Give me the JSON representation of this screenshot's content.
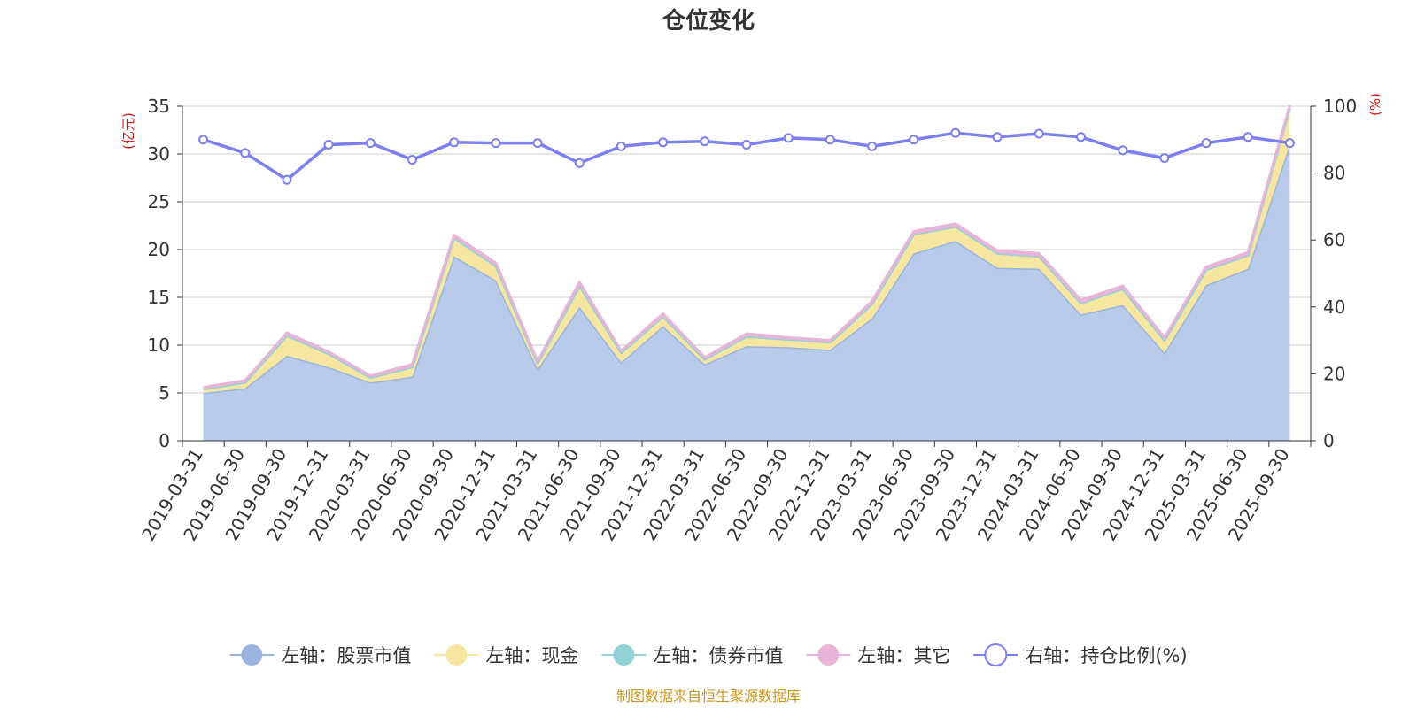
{
  "chart_data": {
    "type": "area",
    "title": "仓位变化",
    "left_axis_unit": "(亿元)",
    "right_axis_unit": "(%)",
    "categories": [
      "2019-03-31",
      "2019-06-30",
      "2019-09-30",
      "2019-12-31",
      "2020-03-31",
      "2020-06-30",
      "2020-09-30",
      "2020-12-31",
      "2021-03-31",
      "2021-06-30",
      "2021-09-30",
      "2021-12-31",
      "2022-03-31",
      "2022-06-30",
      "2022-09-30",
      "2022-12-31",
      "2023-03-31",
      "2023-06-30",
      "2023-09-30",
      "2023-12-31",
      "2024-03-31",
      "2024-06-30",
      "2024-09-30",
      "2024-12-31",
      "2025-03-31",
      "2025-06-30",
      "2025-09-30"
    ],
    "left_ylim": [
      0,
      35
    ],
    "left_yticks": [
      0,
      5,
      10,
      15,
      20,
      25,
      30,
      35
    ],
    "right_ylim": [
      0,
      100
    ],
    "right_yticks": [
      0,
      20,
      40,
      60,
      80,
      100
    ],
    "grid": true,
    "legend_position": "bottom",
    "stacked": true,
    "series": [
      {
        "name": "左轴：股票市值",
        "axis": "left",
        "color": "#9bb5e0",
        "fill": "#b8cbea",
        "values": [
          5.0,
          5.5,
          8.9,
          7.7,
          6.1,
          6.7,
          19.3,
          16.8,
          7.5,
          14.0,
          8.2,
          12.0,
          8.0,
          9.9,
          9.8,
          9.5,
          12.8,
          19.6,
          20.9,
          18.1,
          18.0,
          13.2,
          14.2,
          9.2,
          16.3,
          18.0,
          31.0
        ]
      },
      {
        "name": "左轴：现金",
        "axis": "left",
        "color": "#f7e6a0",
        "fill": "#f7e6a0",
        "values": [
          0.4,
          0.6,
          2.1,
          1.4,
          0.5,
          1.0,
          1.9,
          1.5,
          0.6,
          2.2,
          1.0,
          1.0,
          0.5,
          1.0,
          0.8,
          0.8,
          1.5,
          2.0,
          1.5,
          1.5,
          1.3,
          1.2,
          1.7,
          1.3,
          1.6,
          1.4,
          3.8
        ]
      },
      {
        "name": "左轴：债券市值",
        "axis": "left",
        "color": "#93d2d6",
        "fill": "#93d2d6",
        "values": [
          0,
          0,
          0,
          0,
          0,
          0,
          0,
          0,
          0,
          0,
          0,
          0,
          0,
          0,
          0,
          0,
          0,
          0,
          0,
          0,
          0,
          0,
          0,
          0,
          0,
          0,
          0
        ]
      },
      {
        "name": "左轴：其它",
        "axis": "left",
        "color": "#e8b4d8",
        "fill": "#e8b4d8",
        "values": [
          0.2,
          0.2,
          0.3,
          0.2,
          0.2,
          0.3,
          0.3,
          0.3,
          0.2,
          0.4,
          0.2,
          0.3,
          0.2,
          0.3,
          0.2,
          0.2,
          0.3,
          0.3,
          0.3,
          0.3,
          0.3,
          0.3,
          0.3,
          0.3,
          0.3,
          0.3,
          0.3
        ]
      },
      {
        "name": "右轴：持仓比例(%)",
        "axis": "right",
        "color": "#7b7ff0",
        "values": [
          90.0,
          86.0,
          78.0,
          88.5,
          89.0,
          84.0,
          89.2,
          89.0,
          89.0,
          83.0,
          88.0,
          89.2,
          89.5,
          88.5,
          90.5,
          90.0,
          88.0,
          90.0,
          92.0,
          90.8,
          91.8,
          90.8,
          86.8,
          84.5,
          89.0,
          90.8,
          89.0
        ]
      }
    ],
    "source_note": "制图数据来自恒生聚源数据库"
  }
}
